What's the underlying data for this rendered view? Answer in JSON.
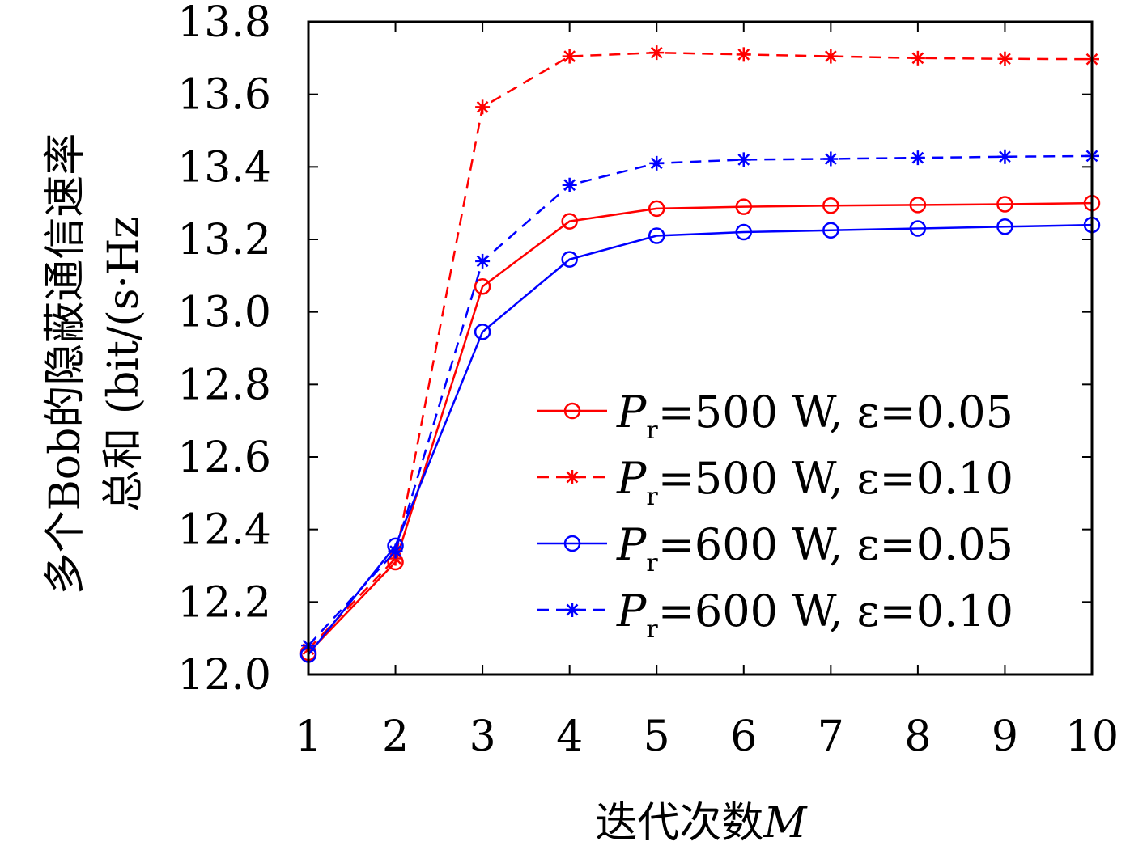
{
  "chart_data": {
    "type": "line",
    "xlabel": "迭代次数",
    "xlabel_var": "M",
    "ylabel_line1": "多个Bob的隐蔽通信速率",
    "ylabel_line2": "总和 (bit/(s·Hz",
    "x": [
      1,
      2,
      3,
      4,
      5,
      6,
      7,
      8,
      9,
      10
    ],
    "xlim": [
      1,
      10
    ],
    "ylim": [
      12.0,
      13.8
    ],
    "xticks": [
      "1",
      "2",
      "3",
      "4",
      "5",
      "6",
      "7",
      "8",
      "9",
      "10"
    ],
    "yticks": [
      "12.0",
      "12.2",
      "12.4",
      "12.6",
      "12.8",
      "13.0",
      "13.2",
      "13.4",
      "13.6",
      "13.8"
    ],
    "ytick_values": [
      12.0,
      12.2,
      12.4,
      12.6,
      12.8,
      13.0,
      13.2,
      13.4,
      13.6,
      13.8
    ],
    "grid": false,
    "legend_position": "bottom-right",
    "series": [
      {
        "legend_var": "P",
        "legend_sub": "r",
        "legend_text": "=500 W, ε=0.05",
        "color": "#ff0000",
        "line_style": "solid",
        "marker": "circle",
        "values": [
          12.06,
          12.31,
          13.07,
          13.25,
          13.285,
          13.29,
          13.293,
          13.295,
          13.297,
          13.3
        ]
      },
      {
        "legend_var": "P",
        "legend_sub": "r",
        "legend_text": "=500 W, ε=0.10",
        "color": "#ff0000",
        "line_style": "dashed",
        "marker": "asterisk",
        "values": [
          12.07,
          12.32,
          13.565,
          13.705,
          13.715,
          13.71,
          13.705,
          13.7,
          13.698,
          13.697
        ]
      },
      {
        "legend_var": "P",
        "legend_sub": "r",
        "legend_text": "=600 W, ε=0.05",
        "color": "#0000ff",
        "line_style": "solid",
        "marker": "circle",
        "values": [
          12.055,
          12.355,
          12.945,
          13.145,
          13.21,
          13.22,
          13.225,
          13.23,
          13.235,
          13.24
        ]
      },
      {
        "legend_var": "P",
        "legend_sub": "r",
        "legend_text": "=600 W, ε=0.10",
        "color": "#0000ff",
        "line_style": "dashed",
        "marker": "asterisk",
        "values": [
          12.08,
          12.34,
          13.14,
          13.35,
          13.41,
          13.42,
          13.422,
          13.425,
          13.428,
          13.43
        ]
      }
    ]
  }
}
